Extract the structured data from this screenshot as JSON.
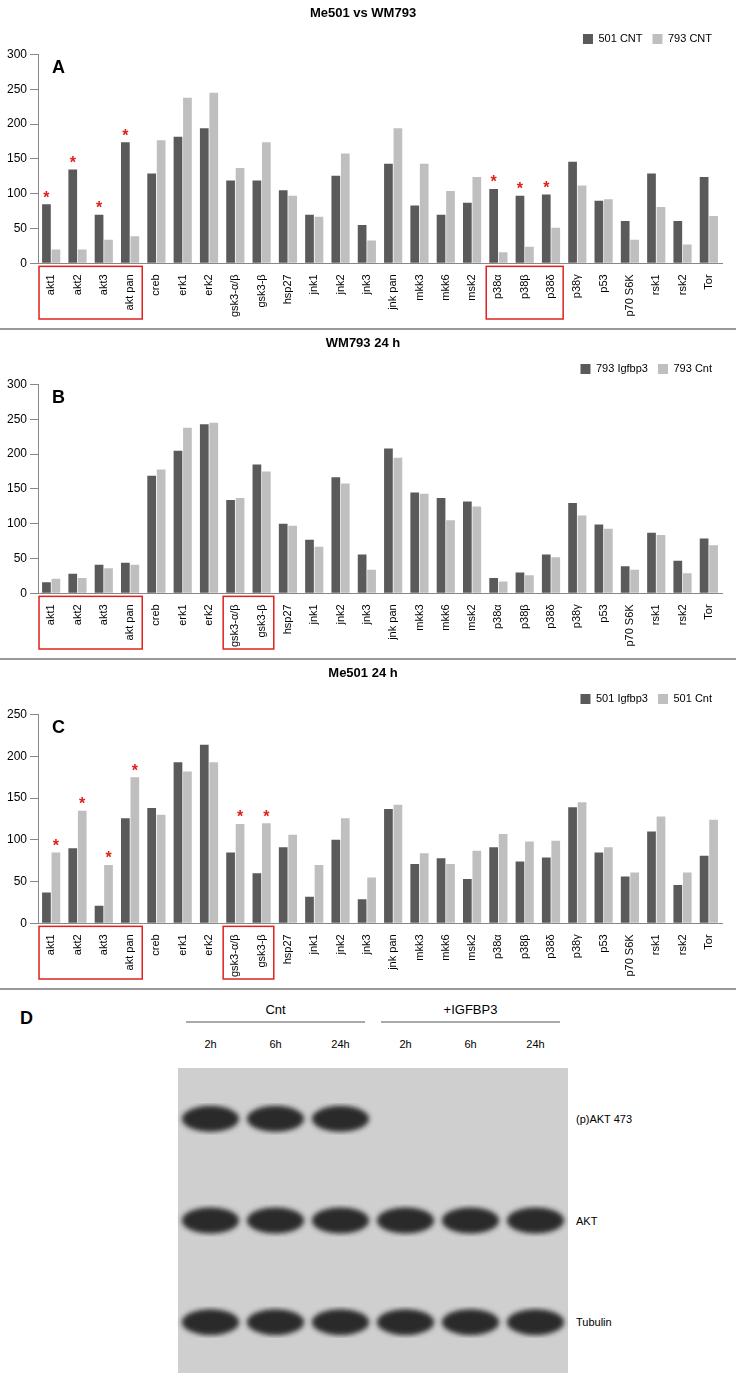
{
  "chart_data": [
    {
      "type": "bar",
      "panel": "A",
      "title": "Me501 vs WM793",
      "categories": [
        "akt1",
        "akt2",
        "akt3",
        "akt pan",
        "creb",
        "erk1",
        "erk2",
        "gsk3-α/β",
        "gsk3-β",
        "hsp27",
        "jnk1",
        "jnk2",
        "jnk3",
        "jnk pan",
        "mkk3",
        "mkk6",
        "msk2",
        "p38α",
        "p38β",
        "p38δ",
        "p38γ",
        "p53",
        "p70 S6K",
        "rsk1",
        "rsk2",
        "Tor"
      ],
      "series": [
        {
          "name": "501 CNT",
          "color": "#5a5a5a",
          "values": [
            85,
            135,
            70,
            174,
            129,
            182,
            194,
            119,
            119,
            105,
            70,
            126,
            55,
            143,
            83,
            70,
            87,
            107,
            97,
            99,
            146,
            90,
            61,
            129,
            61,
            124
          ]
        },
        {
          "name": "793 CNT",
          "color": "#bfbfbf",
          "values": [
            20,
            20,
            34,
            39,
            177,
            238,
            245,
            137,
            174,
            97,
            67,
            158,
            33,
            194,
            143,
            104,
            124,
            16,
            24,
            51,
            112,
            92,
            34,
            81,
            27,
            68
          ]
        }
      ],
      "ylim": [
        0,
        300
      ],
      "yticks": [
        0,
        50,
        100,
        150,
        200,
        250,
        300
      ],
      "grid": false,
      "legend": "top-right",
      "annotations": [
        {
          "text": "*",
          "category": "akt1",
          "series": "501 CNT"
        },
        {
          "text": "*",
          "category": "akt2",
          "series": "501 CNT"
        },
        {
          "text": "*",
          "category": "akt3",
          "series": "501 CNT"
        },
        {
          "text": "*",
          "category": "akt pan",
          "series": "501 CNT"
        },
        {
          "text": "*",
          "category": "p38α",
          "series": "501 CNT"
        },
        {
          "text": "*",
          "category": "p38β",
          "series": "501 CNT"
        },
        {
          "text": "*",
          "category": "p38δ",
          "series": "501 CNT"
        }
      ],
      "boxes": [
        [
          "akt1",
          "akt pan"
        ],
        [
          "p38α",
          "p38δ"
        ]
      ]
    },
    {
      "type": "bar",
      "panel": "B",
      "title": "WM793 24 h",
      "categories": [
        "akt1",
        "akt2",
        "akt3",
        "akt pan",
        "creb",
        "erk1",
        "erk2",
        "gsk3-α/β",
        "gsk3-β",
        "hsp27",
        "jnk1",
        "jnk2",
        "jnk3",
        "jnk pan",
        "mkk3",
        "mkk6",
        "msk2",
        "p38α",
        "p38β",
        "p38δ",
        "p38γ",
        "p53",
        "p70 S6K",
        "rsk1",
        "rsk2",
        "Tor"
      ],
      "series": [
        {
          "name": "793 Igfbp3",
          "color": "#5a5a5a",
          "values": [
            16,
            28,
            41,
            44,
            169,
            205,
            243,
            134,
            185,
            100,
            77,
            167,
            56,
            208,
            145,
            137,
            132,
            22,
            30,
            56,
            130,
            99,
            39,
            87,
            47,
            79
          ]
        },
        {
          "name": "793 Cnt",
          "color": "#bfbfbf",
          "values": [
            21,
            22,
            36,
            41,
            178,
            238,
            245,
            137,
            175,
            97,
            67,
            158,
            34,
            195,
            143,
            105,
            125,
            17,
            26,
            52,
            112,
            93,
            34,
            84,
            29,
            69
          ]
        }
      ],
      "ylim": [
        0,
        300
      ],
      "yticks": [
        0,
        50,
        100,
        150,
        200,
        250,
        300
      ],
      "grid": false,
      "legend": "top-right",
      "annotations": [],
      "boxes": [
        [
          "akt1",
          "akt pan"
        ],
        [
          "gsk3-α/β",
          "gsk3-β"
        ]
      ]
    },
    {
      "type": "bar",
      "panel": "C",
      "title": "Me501 24 h",
      "categories": [
        "akt1",
        "akt2",
        "akt3",
        "akt pan",
        "creb",
        "erk1",
        "erk2",
        "gsk3-α/β",
        "gsk3-β",
        "hsp27",
        "jnk1",
        "jnk2",
        "jnk3",
        "jnk pan",
        "mkk3",
        "mkk6",
        "msk2",
        "p38α",
        "p38β",
        "p38δ",
        "p38γ",
        "p53",
        "p70 S6K",
        "rsk1",
        "rsk2",
        "Tor"
      ],
      "series": [
        {
          "name": "501 Igfbp3",
          "color": "#5a5a5a",
          "values": [
            37,
            90,
            21,
            126,
            138,
            193,
            214,
            85,
            60,
            91,
            32,
            100,
            29,
            137,
            71,
            78,
            53,
            91,
            74,
            79,
            139,
            85,
            56,
            110,
            46,
            81
          ]
        },
        {
          "name": "501 Cnt",
          "color": "#bfbfbf",
          "values": [
            85,
            135,
            70,
            175,
            130,
            182,
            193,
            119,
            120,
            106,
            70,
            126,
            55,
            142,
            84,
            71,
            87,
            107,
            98,
            99,
            145,
            91,
            61,
            128,
            61,
            124
          ]
        }
      ],
      "ylim": [
        0,
        250
      ],
      "yticks": [
        0,
        50,
        100,
        150,
        200,
        250
      ],
      "grid": false,
      "legend": "top-right",
      "annotations": [
        {
          "text": "*",
          "category": "akt1",
          "series": "501 Cnt"
        },
        {
          "text": "*",
          "category": "akt2",
          "series": "501 Cnt"
        },
        {
          "text": "*",
          "category": "akt3",
          "series": "501 Cnt"
        },
        {
          "text": "*",
          "category": "akt pan",
          "series": "501 Cnt"
        },
        {
          "text": "*",
          "category": "gsk3-α/β",
          "series": "501 Cnt"
        },
        {
          "text": "*",
          "category": "gsk3-β",
          "series": "501 Cnt"
        }
      ],
      "boxes": [
        [
          "akt1",
          "akt pan"
        ],
        [
          "gsk3-α/β",
          "gsk3-β"
        ]
      ]
    }
  ],
  "blot": {
    "panel": "D",
    "groups": [
      {
        "label": "Cnt",
        "lanes": [
          "2h",
          "6h",
          "24h"
        ]
      },
      {
        "label": "+IGFBP3",
        "lanes": [
          "2h",
          "6h",
          "24h"
        ]
      }
    ],
    "rows": [
      {
        "label": "(p)AKT 473",
        "bands": [
          true,
          true,
          true,
          false,
          false,
          false
        ]
      },
      {
        "label": "AKT",
        "bands": [
          true,
          true,
          true,
          true,
          true,
          true
        ]
      },
      {
        "label": "Tubulin",
        "bands": [
          true,
          true,
          true,
          true,
          true,
          true
        ]
      }
    ]
  }
}
